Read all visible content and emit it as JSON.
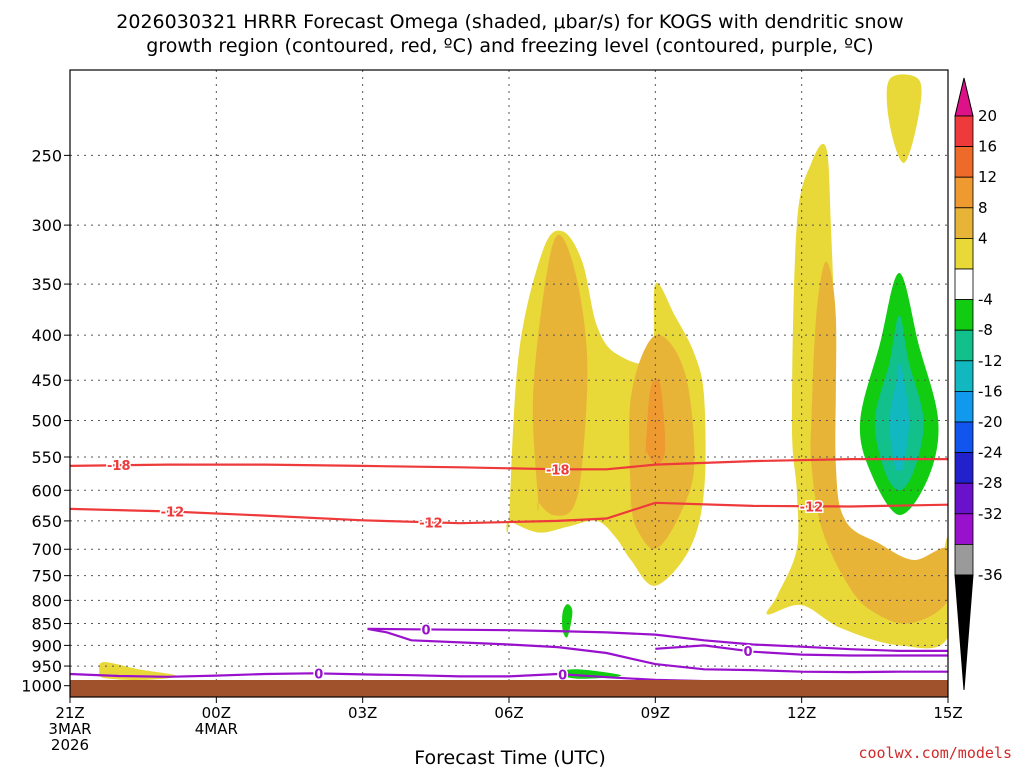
{
  "title_line1": "2026030321 HRRR Forecast Omega (shaded, μbar/s) for KOGS with dendritic snow",
  "title_line2": "growth region (contoured, red, ºC) and freezing level (contoured, purple, ºC)",
  "credit": "coolwx.com/models",
  "chart_data": {
    "type": "time-height cross section",
    "xlabel": "Forecast Time (UTC)",
    "x_ticks": [
      {
        "hour": 0,
        "lines": [
          "21Z",
          "3MAR",
          "2026"
        ]
      },
      {
        "hour": 3,
        "lines": [
          "00Z",
          "4MAR"
        ]
      },
      {
        "hour": 6,
        "lines": [
          "03Z"
        ]
      },
      {
        "hour": 9,
        "lines": [
          "06Z"
        ]
      },
      {
        "hour": 12,
        "lines": [
          "09Z"
        ]
      },
      {
        "hour": 15,
        "lines": [
          "12Z"
        ]
      },
      {
        "hour": 18,
        "lines": [
          "15Z"
        ]
      }
    ],
    "y_pressure_levels": [
      250,
      300,
      350,
      400,
      450,
      500,
      550,
      600,
      650,
      700,
      750,
      800,
      850,
      900,
      950,
      1000
    ],
    "y_scale": "log-pressure",
    "ylim": [
      1030,
      200
    ],
    "grid": true,
    "colorbar": {
      "ticks": [
        20,
        16,
        12,
        8,
        4,
        -4,
        -8,
        -12,
        -16,
        -20,
        -24,
        -28,
        -32,
        -36
      ],
      "colors": [
        "#dd1188",
        "#ee3a3a",
        "#ee6a2a",
        "#ee9a30",
        "#e8b438",
        "#e8d838",
        "#ffffff",
        "#11cc11",
        "#11c08a",
        "#11b8c0",
        "#1199ee",
        "#1155ee",
        "#2222cc",
        "#6a11cc",
        "#9911cc",
        "#9a9a9a",
        "#000000"
      ]
    },
    "contours": {
      "dgz": {
        "color": "#ee3a3a",
        "lines": [
          {
            "label": "-18",
            "points": [
              [
                0,
                563
              ],
              [
                2,
                561
              ],
              [
                4,
                561
              ],
              [
                6,
                563
              ],
              [
                8,
                565
              ],
              [
                10,
                568
              ],
              [
                11,
                568
              ],
              [
                12,
                561
              ],
              [
                14,
                556
              ],
              [
                16,
                553
              ],
              [
                18,
                553
              ]
            ],
            "label_hours": [
              1,
              10
            ]
          },
          {
            "label": "-12",
            "points": [
              [
                0,
                630
              ],
              [
                2,
                634
              ],
              [
                4,
                641
              ],
              [
                6,
                649
              ],
              [
                8,
                654
              ],
              [
                10,
                650
              ],
              [
                11,
                646
              ],
              [
                12,
                620
              ],
              [
                14,
                625
              ],
              [
                16,
                626
              ],
              [
                18,
                623
              ]
            ],
            "label_hours": [
              2.1,
              7.4,
              15.2
            ]
          }
        ]
      },
      "freezing": {
        "color": "#9911cc",
        "lines": [
          {
            "label": "0",
            "points": [
              [
                0,
                970
              ],
              [
                1,
                975
              ],
              [
                2,
                977
              ],
              [
                3,
                974
              ],
              [
                4,
                970
              ],
              [
                5,
                968
              ],
              [
                6,
                971
              ],
              [
                7,
                973
              ],
              [
                8,
                976
              ],
              [
                9,
                976
              ],
              [
                10,
                970
              ],
              [
                11,
                978
              ],
              [
                12,
                985
              ],
              [
                13,
                988
              ]
            ],
            "label_hours": [
              5.1,
              10.1
            ]
          },
          {
            "label": "0",
            "points": [
              [
                6.1,
                862
              ],
              [
                7,
                863
              ],
              [
                9,
                865
              ],
              [
                10,
                867
              ],
              [
                11,
                870
              ],
              [
                12,
                875
              ],
              [
                13,
                888
              ],
              [
                14,
                898
              ],
              [
                15,
                903
              ],
              [
                16,
                909
              ],
              [
                17,
                913
              ],
              [
                18,
                913
              ]
            ],
            "label_hours": [
              7.3
            ]
          },
          {
            "label": "0",
            "points": [
              [
                6.1,
                862
              ],
              [
                6.5,
                870
              ],
              [
                7,
                888
              ],
              [
                8,
                893
              ],
              [
                9,
                898
              ],
              [
                10,
                904
              ],
              [
                11,
                918
              ],
              [
                12,
                945
              ],
              [
                13,
                958
              ],
              [
                14,
                960
              ],
              [
                15,
                964
              ],
              [
                16,
                965
              ],
              [
                17,
                964
              ],
              [
                18,
                964
              ]
            ],
            "label_hours": []
          },
          {
            "label": "0",
            "points": [
              [
                12,
                908
              ],
              [
                13,
                900
              ],
              [
                14,
                915
              ],
              [
                15,
                922
              ],
              [
                16,
                924
              ],
              [
                17,
                924
              ],
              [
                18,
                924
              ]
            ],
            "label_hours": [
              13.9
            ]
          }
        ]
      }
    },
    "omega_regions": [
      {
        "value": 4,
        "hours": [
          [
            0.7,
            940
          ],
          [
            1.4,
            958
          ],
          [
            2.2,
            975
          ],
          [
            1.5,
            985
          ],
          [
            0.7,
            980
          ],
          [
            0.6,
            962
          ]
        ]
      },
      {
        "value": 4,
        "hours": [
          [
            9.0,
            650
          ],
          [
            9.2,
            420
          ],
          [
            9.7,
            320
          ],
          [
            10.1,
            305
          ],
          [
            10.5,
            330
          ],
          [
            10.8,
            390
          ],
          [
            11.2,
            420
          ],
          [
            11.9,
            425
          ],
          [
            12.0,
            350
          ],
          [
            12.4,
            380
          ],
          [
            12.8,
            420
          ],
          [
            13.0,
            470
          ],
          [
            13.0,
            600
          ],
          [
            12.7,
            700
          ],
          [
            12.0,
            770
          ],
          [
            11.5,
            720
          ],
          [
            11.2,
            680
          ],
          [
            10.8,
            650
          ],
          [
            10.2,
            660
          ],
          [
            9.6,
            670
          ],
          [
            9.0,
            650
          ]
        ]
      },
      {
        "value": 8,
        "hours": [
          [
            9.6,
            620
          ],
          [
            9.5,
            460
          ],
          [
            9.9,
            315
          ],
          [
            10.3,
            330
          ],
          [
            10.6,
            420
          ],
          [
            10.5,
            560
          ],
          [
            10.3,
            630
          ],
          [
            9.9,
            640
          ],
          [
            9.6,
            620
          ]
        ]
      },
      {
        "value": 8,
        "hours": [
          [
            11.5,
            620
          ],
          [
            11.5,
            470
          ],
          [
            12.0,
            400
          ],
          [
            12.6,
            440
          ],
          [
            12.8,
            560
          ],
          [
            12.5,
            640
          ],
          [
            12.0,
            700
          ],
          [
            11.6,
            660
          ],
          [
            11.5,
            620
          ]
        ]
      },
      {
        "value": 12,
        "hours": [
          [
            11.8,
            540
          ],
          [
            11.9,
            460
          ],
          [
            12.1,
            455
          ],
          [
            12.2,
            540
          ],
          [
            12.0,
            560
          ],
          [
            11.8,
            540
          ]
        ]
      },
      {
        "value": 4,
        "hours": [
          [
            14.8,
            500
          ],
          [
            14.9,
            300
          ],
          [
            15.2,
            255
          ],
          [
            15.5,
            245
          ],
          [
            15.6,
            300
          ],
          [
            15.7,
            470
          ],
          [
            15.6,
            680
          ],
          [
            15.8,
            720
          ],
          [
            16.2,
            760
          ],
          [
            17.0,
            820
          ],
          [
            17.7,
            780
          ],
          [
            18.0,
            680
          ],
          [
            18.0,
            880
          ],
          [
            17.0,
            900
          ],
          [
            15.8,
            860
          ],
          [
            15.0,
            810
          ],
          [
            14.3,
            830
          ],
          [
            14.5,
            790
          ],
          [
            14.9,
            700
          ],
          [
            14.9,
            600
          ]
        ]
      },
      {
        "value": 8,
        "hours": [
          [
            15.2,
            500
          ],
          [
            15.3,
            380
          ],
          [
            15.5,
            330
          ],
          [
            15.7,
            380
          ],
          [
            15.7,
            560
          ],
          [
            15.9,
            650
          ],
          [
            16.6,
            690
          ],
          [
            17.3,
            720
          ],
          [
            18.0,
            700
          ],
          [
            18.0,
            800
          ],
          [
            17.2,
            850
          ],
          [
            16.4,
            820
          ],
          [
            15.9,
            760
          ],
          [
            15.4,
            660
          ],
          [
            15.2,
            560
          ]
        ]
      },
      {
        "value": 4,
        "hours": [
          [
            16.8,
            205
          ],
          [
            17.4,
            205
          ],
          [
            17.4,
            225
          ],
          [
            17.1,
            255
          ],
          [
            16.8,
            230
          ]
        ]
      }
    ],
    "omega_negative_regions": [
      {
        "value": -4,
        "hours": [
          [
            16.2,
            500
          ],
          [
            16.6,
            410
          ],
          [
            17.0,
            340
          ],
          [
            17.4,
            410
          ],
          [
            17.8,
            500
          ],
          [
            17.6,
            580
          ],
          [
            17.0,
            640
          ],
          [
            16.4,
            570
          ]
        ]
      },
      {
        "value": -8,
        "hours": [
          [
            16.5,
            500
          ],
          [
            16.8,
            430
          ],
          [
            17.0,
            380
          ],
          [
            17.2,
            430
          ],
          [
            17.5,
            500
          ],
          [
            17.3,
            570
          ],
          [
            17.0,
            600
          ],
          [
            16.7,
            570
          ]
        ]
      },
      {
        "value": -12,
        "hours": [
          [
            16.8,
            500
          ],
          [
            16.95,
            450
          ],
          [
            17.0,
            430
          ],
          [
            17.1,
            450
          ],
          [
            17.2,
            500
          ],
          [
            17.1,
            560
          ],
          [
            17.0,
            570
          ],
          [
            16.9,
            560
          ]
        ]
      },
      {
        "value": -4,
        "hours": [
          [
            10.1,
            825
          ],
          [
            10.2,
            808
          ],
          [
            10.3,
            825
          ],
          [
            10.2,
            880
          ],
          [
            10.1,
            865
          ]
        ]
      },
      {
        "value": -4,
        "hours": [
          [
            10.0,
            968
          ],
          [
            10.4,
            958
          ],
          [
            11.3,
            974
          ],
          [
            10.4,
            982
          ]
        ]
      }
    ]
  }
}
